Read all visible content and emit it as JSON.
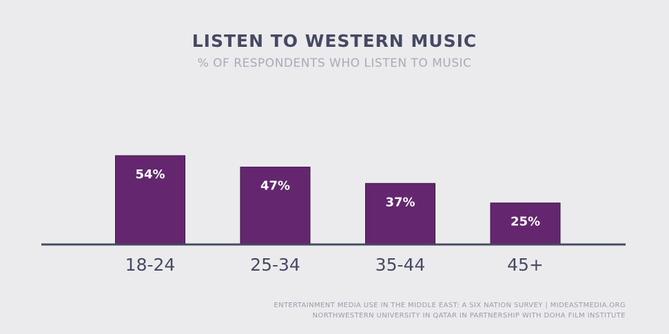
{
  "chart_data": {
    "type": "bar",
    "title": "LISTEN TO WESTERN MUSIC",
    "subtitle": "% OF RESPONDENTS WHO LISTEN TO MUSIC",
    "categories": [
      "18-24",
      "25-34",
      "35-44",
      "45+"
    ],
    "values": [
      54,
      47,
      37,
      25
    ],
    "data_labels": [
      "54%",
      "47%",
      "37%",
      "25%"
    ],
    "ylim": [
      0,
      100
    ],
    "grid": false,
    "legend": "none",
    "bar_color": "#64266f",
    "baseline_color": "#464962"
  },
  "source": {
    "line1": "ENTERTAINMENT MEDIA USE IN THE MIDDLE EAST: A SIX NATION SURVEY | MIDEASTMEDIA.ORG",
    "line2": "NORTHWESTERN UNIVERSITY IN QATAR IN PARTNERSHIP WITH DOHA FILM INSTITUTE"
  }
}
